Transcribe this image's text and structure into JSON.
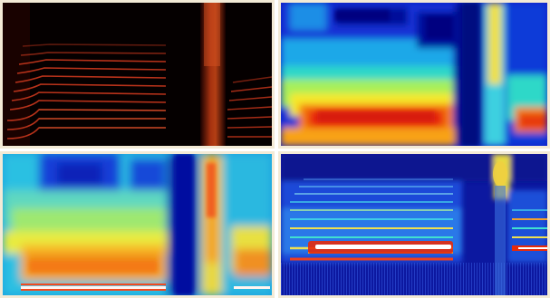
{
  "figure": {
    "panels": [
      {
        "id": "hot-colormap",
        "colormap": "hot"
      },
      {
        "id": "jet-colormap-smooth",
        "colormap": "jet"
      },
      {
        "id": "jet-colormap-blurred",
        "colormap": "jet"
      },
      {
        "id": "jet-colormap-detailed",
        "colormap": "jet"
      }
    ],
    "frame_color": "#f3ead6"
  }
}
